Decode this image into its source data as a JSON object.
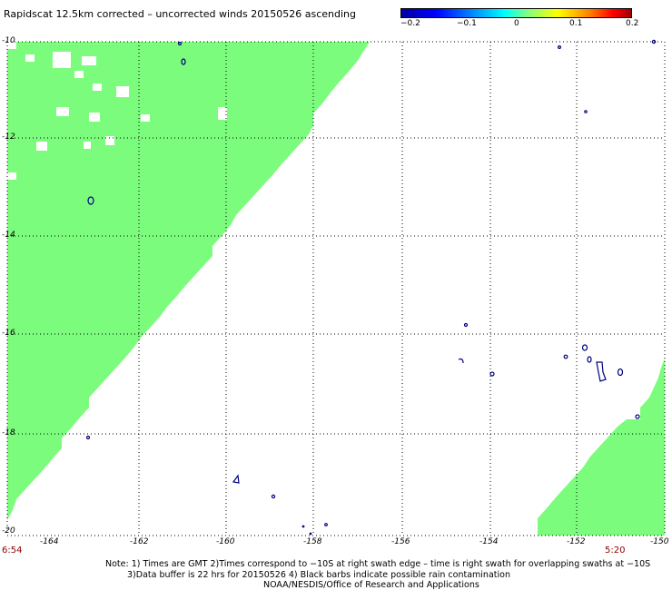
{
  "title": "Rapidscat 12.5km corrected – uncorrected winds 20150526 ascending",
  "colorbar": {
    "ticks": [
      "−0.2",
      "−0.1",
      "0",
      "0.1",
      "0.2"
    ]
  },
  "colors": {
    "swath": "#7cfc7c",
    "land_outline": "#000080",
    "grid": "#000000",
    "time_label": "#8b0000"
  },
  "axes": {
    "lat_labels": [
      "-10",
      "-12",
      "-14",
      "-16",
      "-18",
      "-20"
    ],
    "lon_labels": [
      "-164",
      "-162",
      "-160",
      "-158",
      "-156",
      "-154",
      "-152",
      "-150"
    ],
    "lat_range": [
      -20,
      -10
    ],
    "lon_range": [
      -165,
      -150
    ]
  },
  "times": {
    "left": "6:54",
    "right": "5:20"
  },
  "notes": {
    "line1": "Note: 1) Times are GMT 2)Times correspond to −10S at right swath edge – time is right swath for overlapping swaths at −10S",
    "line2": "3)Data buffer is 22 hrs for 20150526 4) Black barbs indicate possible rain contamination",
    "line3": "NOAA/NESDIS/Office of Research and Applications"
  }
}
